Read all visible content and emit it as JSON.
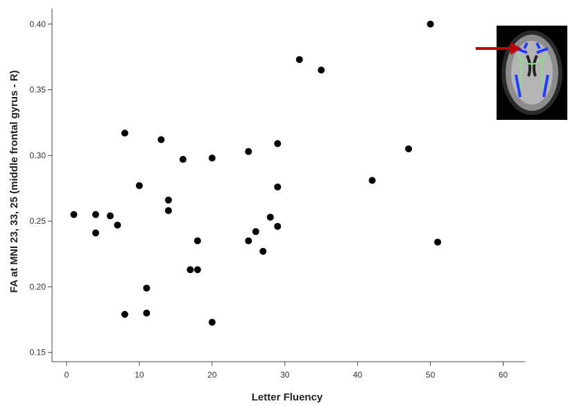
{
  "chart_data": {
    "type": "scatter",
    "xlabel": "Letter Fluency",
    "ylabel": "FA at MNI 23, 33, 25 (middle frontal gyrus - R)",
    "xlim": [
      -2,
      63
    ],
    "ylim": [
      0.143,
      0.412
    ],
    "x_ticks": [
      "0",
      "10",
      "20",
      "30",
      "40",
      "50",
      "60"
    ],
    "y_ticks": [
      "0.15",
      "0.20",
      "0.25",
      "0.30",
      "0.35",
      "0.40"
    ],
    "grid": false,
    "point_color": "#000000",
    "points": [
      {
        "x": 1,
        "y": 0.255
      },
      {
        "x": 4,
        "y": 0.255
      },
      {
        "x": 4,
        "y": 0.241
      },
      {
        "x": 6,
        "y": 0.254
      },
      {
        "x": 7,
        "y": 0.247
      },
      {
        "x": 8,
        "y": 0.317
      },
      {
        "x": 8,
        "y": 0.179
      },
      {
        "x": 10,
        "y": 0.277
      },
      {
        "x": 11,
        "y": 0.199
      },
      {
        "x": 11,
        "y": 0.18
      },
      {
        "x": 13,
        "y": 0.312
      },
      {
        "x": 14,
        "y": 0.266
      },
      {
        "x": 14,
        "y": 0.258
      },
      {
        "x": 16,
        "y": 0.297
      },
      {
        "x": 17,
        "y": 0.213
      },
      {
        "x": 18,
        "y": 0.235
      },
      {
        "x": 18,
        "y": 0.213
      },
      {
        "x": 20,
        "y": 0.298
      },
      {
        "x": 20,
        "y": 0.173
      },
      {
        "x": 25,
        "y": 0.303
      },
      {
        "x": 25,
        "y": 0.235
      },
      {
        "x": 26,
        "y": 0.242
      },
      {
        "x": 27,
        "y": 0.227
      },
      {
        "x": 28,
        "y": 0.253
      },
      {
        "x": 29,
        "y": 0.309
      },
      {
        "x": 29,
        "y": 0.276
      },
      {
        "x": 29,
        "y": 0.246
      },
      {
        "x": 32,
        "y": 0.373
      },
      {
        "x": 35,
        "y": 0.365
      },
      {
        "x": 42,
        "y": 0.281
      },
      {
        "x": 47,
        "y": 0.305
      },
      {
        "x": 50,
        "y": 0.4
      },
      {
        "x": 51,
        "y": 0.234
      }
    ]
  },
  "inset": {
    "colors": {
      "background": "#000000",
      "brain": "#8c8c8c",
      "tract_blue": "#1f3cff",
      "tract_green": "#86e08c",
      "arrow": "#c00000"
    }
  }
}
